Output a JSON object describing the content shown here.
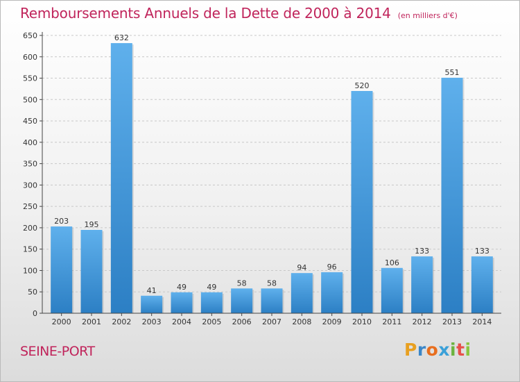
{
  "title": "Remboursements Annuels de la Dette de 2000 à 2014",
  "unit": "(en milliers d'€)",
  "commune": "SEINE-PORT",
  "logo": {
    "letters": [
      "P",
      "r",
      "o",
      "x",
      "i",
      "t",
      "i"
    ],
    "colors": [
      "#e8a020",
      "#3a86c8",
      "#e86e1e",
      "#3aa0d8",
      "#6cb33f",
      "#e8504a",
      "#8cc63f"
    ]
  },
  "colors": {
    "bar": "#3b96da",
    "bar_light": "#5fb0ec",
    "accent": "#c0245b"
  },
  "chart_data": {
    "type": "bar",
    "categories": [
      "2000",
      "2001",
      "2002",
      "2003",
      "2004",
      "2005",
      "2006",
      "2007",
      "2008",
      "2009",
      "2010",
      "2011",
      "2012",
      "2013",
      "2014"
    ],
    "values": [
      203,
      195,
      632,
      41,
      49,
      49,
      58,
      58,
      94,
      96,
      520,
      106,
      133,
      551,
      133
    ],
    "title": "Remboursements Annuels de la Dette de 2000 à 2014",
    "xlabel": "",
    "ylabel": "",
    "ylim": [
      0,
      650
    ],
    "yticks": [
      0,
      50,
      100,
      150,
      200,
      250,
      300,
      350,
      400,
      450,
      500,
      550,
      600,
      650
    ],
    "grid": true
  }
}
